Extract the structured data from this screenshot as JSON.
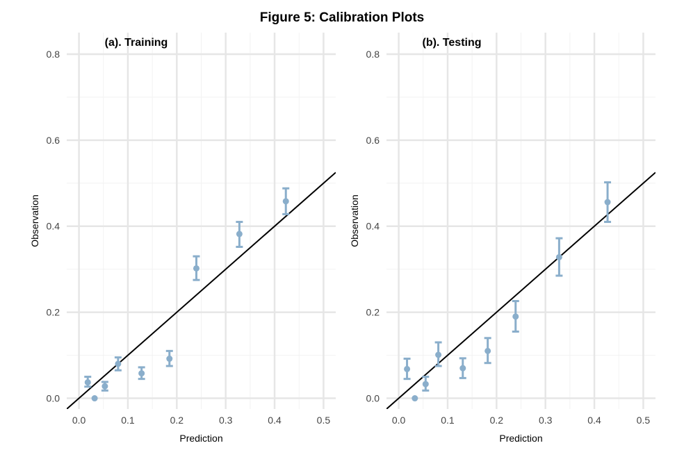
{
  "figure": {
    "title": "Figure 5: Calibration Plots"
  },
  "colors": {
    "points": "#8aaecb",
    "reference_line": "#000000",
    "grid_major": "#e6e6e6",
    "grid_minor": "#f2f2f2"
  },
  "chart_data": [
    {
      "type": "scatter",
      "title": "(a). Training",
      "xlabel": "Prediction",
      "ylabel": "Observation",
      "xlim": [
        -0.025,
        0.525
      ],
      "ylim": [
        -0.025,
        0.85
      ],
      "xticks": [
        "0.0",
        "0.1",
        "0.2",
        "0.3",
        "0.4",
        "0.5"
      ],
      "yticks": [
        "0.0",
        "0.2",
        "0.4",
        "0.6",
        "0.8"
      ],
      "grid": true,
      "reference_line": "y = x",
      "points": [
        {
          "x": 0.018,
          "y": 0.037,
          "ymin": 0.027,
          "ymax": 0.05
        },
        {
          "x": 0.032,
          "y": 0.0,
          "ymin": 0.0,
          "ymax": 0.0
        },
        {
          "x": 0.053,
          "y": 0.028,
          "ymin": 0.018,
          "ymax": 0.038
        },
        {
          "x": 0.08,
          "y": 0.08,
          "ymin": 0.065,
          "ymax": 0.095
        },
        {
          "x": 0.128,
          "y": 0.058,
          "ymin": 0.045,
          "ymax": 0.072
        },
        {
          "x": 0.185,
          "y": 0.092,
          "ymin": 0.075,
          "ymax": 0.11
        },
        {
          "x": 0.24,
          "y": 0.302,
          "ymin": 0.275,
          "ymax": 0.33
        },
        {
          "x": 0.328,
          "y": 0.382,
          "ymin": 0.352,
          "ymax": 0.41
        },
        {
          "x": 0.423,
          "y": 0.458,
          "ymin": 0.428,
          "ymax": 0.488
        }
      ]
    },
    {
      "type": "scatter",
      "title": "(b). Testing",
      "xlabel": "Prediction",
      "ylabel": "Observation",
      "xlim": [
        -0.025,
        0.525
      ],
      "ylim": [
        -0.025,
        0.85
      ],
      "xticks": [
        "0.0",
        "0.1",
        "0.2",
        "0.3",
        "0.4",
        "0.5"
      ],
      "yticks": [
        "0.0",
        "0.2",
        "0.4",
        "0.6",
        "0.8"
      ],
      "grid": true,
      "reference_line": "y = x",
      "points": [
        {
          "x": 0.017,
          "y": 0.068,
          "ymin": 0.045,
          "ymax": 0.092
        },
        {
          "x": 0.033,
          "y": 0.0,
          "ymin": 0.0,
          "ymax": 0.0
        },
        {
          "x": 0.055,
          "y": 0.033,
          "ymin": 0.018,
          "ymax": 0.05
        },
        {
          "x": 0.081,
          "y": 0.101,
          "ymin": 0.075,
          "ymax": 0.13
        },
        {
          "x": 0.131,
          "y": 0.07,
          "ymin": 0.047,
          "ymax": 0.093
        },
        {
          "x": 0.182,
          "y": 0.11,
          "ymin": 0.082,
          "ymax": 0.14
        },
        {
          "x": 0.239,
          "y": 0.19,
          "ymin": 0.155,
          "ymax": 0.226
        },
        {
          "x": 0.328,
          "y": 0.328,
          "ymin": 0.285,
          "ymax": 0.372
        },
        {
          "x": 0.427,
          "y": 0.456,
          "ymin": 0.41,
          "ymax": 0.502
        }
      ]
    }
  ]
}
